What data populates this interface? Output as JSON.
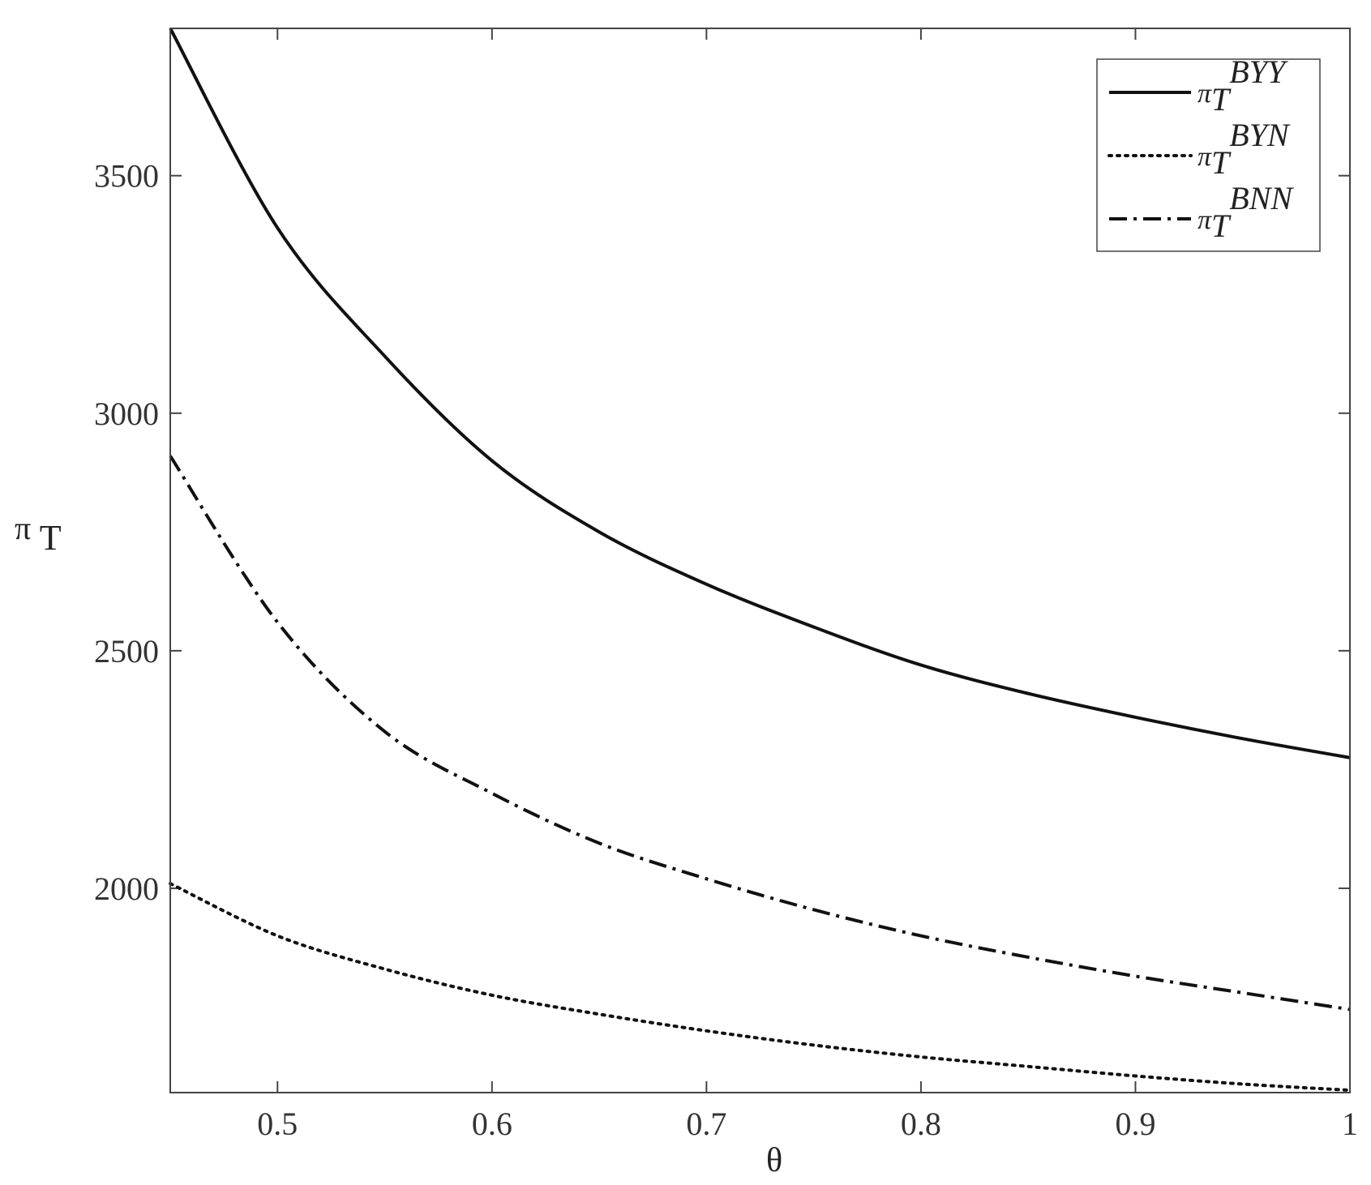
{
  "chart_data": {
    "type": "line",
    "title": "",
    "xlabel": "θ",
    "ylabel": {
      "main": "π",
      "sub": "T"
    },
    "xlim": [
      0.45,
      1.0
    ],
    "ylim": [
      1570,
      3810
    ],
    "x_ticks": [
      0.5,
      0.6,
      0.7,
      0.8,
      0.9,
      1
    ],
    "x_tick_labels": [
      "0.5",
      "0.6",
      "0.7",
      "0.8",
      "0.9",
      "1"
    ],
    "y_ticks": [
      2000,
      2500,
      3000,
      3500
    ],
    "y_tick_labels": [
      "2000",
      "2500",
      "3000",
      "3500"
    ],
    "grid": false,
    "legend_position": "top-right",
    "x": [
      0.45,
      0.5,
      0.55,
      0.6,
      0.65,
      0.7,
      0.75,
      0.8,
      0.85,
      0.9,
      0.95,
      1.0
    ],
    "series": [
      {
        "name": {
          "main": "π",
          "sub": "T",
          "sup": "BYY"
        },
        "style": "solid",
        "color": "#111111",
        "values": [
          3810,
          3390,
          3120,
          2900,
          2750,
          2640,
          2550,
          2470,
          2410,
          2360,
          2315,
          2275
        ]
      },
      {
        "name": {
          "main": "π",
          "sub": "T",
          "sup": "BYN"
        },
        "style": "dotted",
        "color": "#111111",
        "values": [
          2010,
          1900,
          1830,
          1775,
          1735,
          1700,
          1670,
          1645,
          1625,
          1605,
          1588,
          1575
        ]
      },
      {
        "name": {
          "main": "π",
          "sub": "T",
          "sup": "BNN"
        },
        "style": "dashdot",
        "color": "#111111",
        "values": [
          2910,
          2560,
          2330,
          2200,
          2095,
          2020,
          1955,
          1900,
          1855,
          1815,
          1780,
          1745
        ]
      }
    ]
  }
}
